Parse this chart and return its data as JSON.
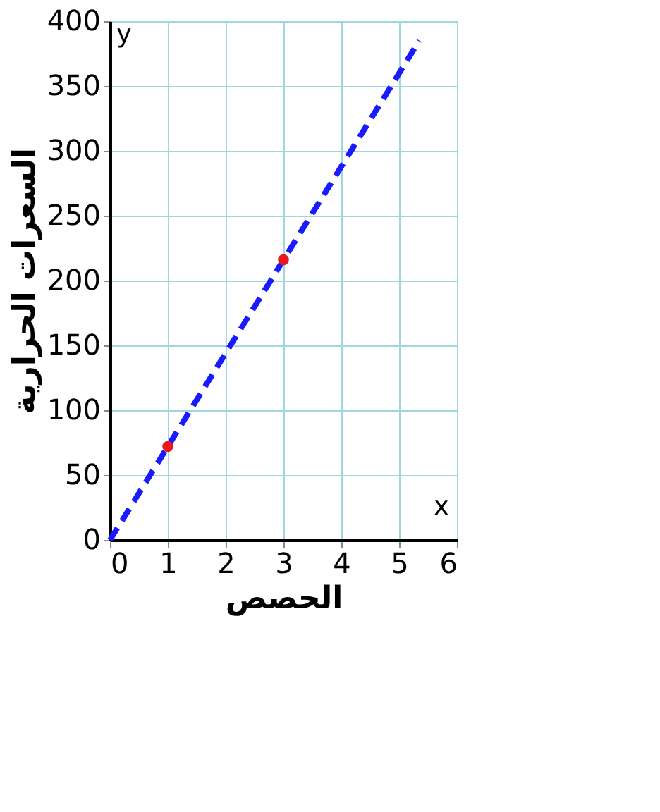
{
  "chart_data": {
    "type": "line",
    "xlabel": "الحصص",
    "ylabel": "السعرات الحرارية",
    "xlim": [
      0,
      6
    ],
    "xticks": [
      0,
      1,
      2,
      3,
      4,
      5,
      6
    ],
    "ylim": [
      0,
      400
    ],
    "yticks": [
      0,
      50,
      100,
      150,
      200,
      250,
      300,
      350,
      400
    ],
    "grid": true,
    "annotations": [
      "x",
      "y"
    ],
    "series": [
      {
        "color": "#1a1aff",
        "line_style": "dashed",
        "x": [
          0,
          5.35
        ],
        "values": [
          0,
          385
        ]
      },
      {
        "type": "scatter",
        "color": "#e8171b",
        "marker": "circle",
        "x": [
          1,
          3
        ],
        "values": [
          72,
          216
        ]
      }
    ]
  }
}
